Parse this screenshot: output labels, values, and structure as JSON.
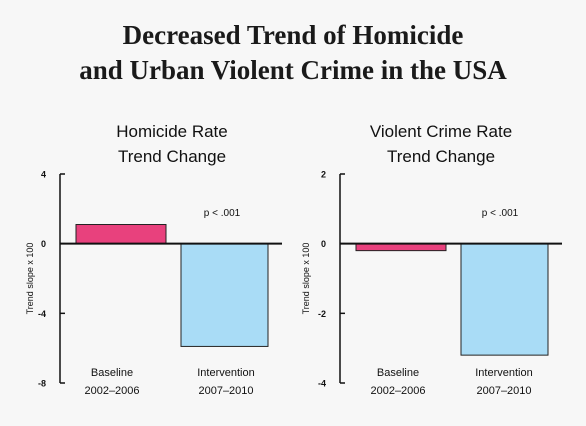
{
  "page": {
    "title_lines": [
      "Decreased Trend of Homicide",
      "and Urban Violent Crime in the USA"
    ]
  },
  "colors": {
    "baseline_bar": "#e8417d",
    "intervention_bar": "#a9dcf6",
    "bar_stroke": "#222222",
    "axis": "#111111"
  },
  "chart_data": [
    {
      "type": "bar",
      "title_lines": [
        "Homicide Rate",
        "Trend Change"
      ],
      "ylabel": "Trend slope x 100",
      "ylim": [
        -8,
        4
      ],
      "yticks": [
        4,
        0,
        -4,
        -8
      ],
      "categories": [
        {
          "lines": [
            "Baseline",
            "2002–2006"
          ]
        },
        {
          "lines": [
            "Intervention",
            "2007–2010"
          ]
        }
      ],
      "values": [
        1.1,
        -5.9
      ],
      "annotation": "p < .001",
      "grid": false
    },
    {
      "type": "bar",
      "title_lines": [
        "Violent Crime Rate",
        "Trend Change"
      ],
      "ylabel": "Trend slope x 100",
      "ylim": [
        -4,
        2
      ],
      "yticks": [
        2,
        0,
        -2,
        -4
      ],
      "categories": [
        {
          "lines": [
            "Baseline",
            "2002–2006"
          ]
        },
        {
          "lines": [
            "Intervention",
            "2007–2010"
          ]
        }
      ],
      "values": [
        -0.2,
        -3.2
      ],
      "annotation": "p < .001",
      "grid": false
    }
  ]
}
